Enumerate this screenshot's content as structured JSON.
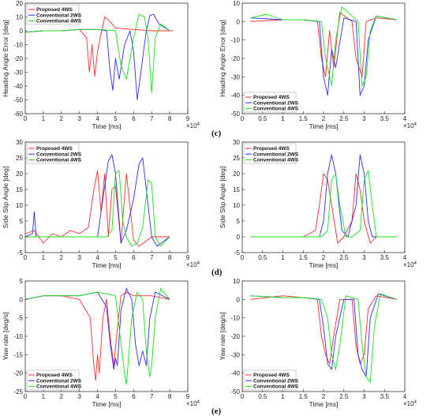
{
  "colors": {
    "proposed": "#ff2a2a",
    "conv2ws": "#2a2aff",
    "conv4ws": "#18e018"
  },
  "captions": {
    "c": "(c)",
    "d": "(d)",
    "e": "(e)"
  },
  "chart_data": [
    {
      "type": "line",
      "xlabel": "Time [ms]",
      "ylabel": "Heading Angle Error [deg]",
      "xlim": [
        0,
        9
      ],
      "ylim": [
        -60,
        20
      ],
      "xticks": [
        "0",
        "1",
        "2",
        "3",
        "4",
        "5",
        "6",
        "7",
        "8",
        "9"
      ],
      "yticks": [
        "-60",
        "-50",
        "-40",
        "-30",
        "-20",
        "-10",
        "0",
        "10",
        "20"
      ],
      "xexp": "×10",
      "xexp_power": "4",
      "grid": false,
      "legend": "top-left",
      "series": [
        {
          "name": "Proposed 4WS",
          "x": [
            0,
            1,
            2,
            3,
            3.4,
            3.55,
            3.7,
            3.85,
            4.0,
            4.2,
            4.4,
            4.6,
            5,
            6,
            7,
            8.2
          ],
          "y": [
            -1,
            0,
            0,
            1,
            -5,
            -30,
            -10,
            -33,
            -15,
            -2,
            10,
            8,
            2,
            1,
            0,
            0
          ]
        },
        {
          "name": "Conventional 2WS",
          "x": [
            0,
            1,
            2,
            3,
            4,
            4.5,
            4.7,
            4.85,
            5.0,
            5.2,
            5.5,
            5.8,
            6.0,
            6.2,
            6.5,
            6.7,
            6.9,
            7.1,
            7.4,
            8
          ],
          "y": [
            -1,
            0,
            0,
            1,
            1,
            0,
            -30,
            -43,
            -20,
            -35,
            -10,
            0,
            -15,
            -50,
            -20,
            0,
            11,
            12,
            5,
            0
          ]
        },
        {
          "name": "Conventional 4WS",
          "x": [
            0,
            1,
            2,
            3,
            4,
            5,
            5.3,
            5.6,
            5.8,
            6.0,
            6.3,
            6.6,
            6.8,
            7.0,
            7.2,
            7.5,
            8
          ],
          "y": [
            -1,
            0,
            0,
            1,
            1,
            0,
            -25,
            -35,
            -20,
            -5,
            12,
            10,
            -5,
            -45,
            -5,
            5,
            0
          ]
        }
      ]
    },
    {
      "type": "line",
      "xlabel": "Time [ms]",
      "ylabel": "Heading Angle Error [deg]",
      "xlim": [
        0,
        4
      ],
      "ylim": [
        -50,
        10
      ],
      "xticks": [
        "0",
        "0.5",
        "1",
        "1.5",
        "2",
        "2.5",
        "3",
        "3.5",
        "4"
      ],
      "yticks": [
        "-50",
        "-40",
        "-30",
        "-20",
        "-10",
        "0",
        "10"
      ],
      "xexp": "×10",
      "xexp_power": "4",
      "grid": false,
      "legend": "bottom-left",
      "series": [
        {
          "name": "Proposed 4WS",
          "x": [
            0.2,
            1,
            1.5,
            1.85,
            1.95,
            2.05,
            2.15,
            2.25,
            2.4,
            2.7,
            2.8,
            2.95,
            3.05,
            3.3,
            3.8
          ],
          "y": [
            0,
            1,
            1,
            0,
            -20,
            -30,
            -5,
            -25,
            5,
            0,
            -20,
            -30,
            0,
            2,
            1
          ]
        },
        {
          "name": "Conventional 2WS",
          "x": [
            0.2,
            1,
            1.5,
            1.9,
            2.0,
            2.1,
            2.2,
            2.3,
            2.5,
            2.8,
            2.9,
            3.0,
            3.1,
            3.3,
            3.8
          ],
          "y": [
            2,
            1,
            1,
            0,
            -30,
            -40,
            -15,
            -25,
            2,
            0,
            -40,
            -35,
            -10,
            3,
            1
          ]
        },
        {
          "name": "Conventional 4WS",
          "x": [
            0.2,
            0.6,
            1,
            1.5,
            1.95,
            2.05,
            2.2,
            2.3,
            2.45,
            2.85,
            2.95,
            3.05,
            3.15,
            3.3,
            3.8
          ],
          "y": [
            2,
            4,
            1,
            1,
            0,
            -20,
            -35,
            -10,
            8,
            0,
            -35,
            -30,
            -5,
            3,
            1
          ]
        }
      ]
    },
    {
      "type": "line",
      "xlabel": "Time [ms]",
      "ylabel": "Side Slip Angle [deg]",
      "xlim": [
        0,
        9
      ],
      "ylim": [
        -5,
        30
      ],
      "xticks": [
        "0",
        "1",
        "2",
        "3",
        "4",
        "5",
        "6",
        "7",
        "8",
        "9"
      ],
      "yticks": [
        "-5",
        "0",
        "5",
        "10",
        "15",
        "20",
        "25",
        "30"
      ],
      "xexp": "×10",
      "xexp_power": "4",
      "grid": false,
      "legend": "top-left",
      "series": [
        {
          "name": "Proposed 4WS",
          "x": [
            0,
            0.5,
            1,
            1.5,
            2,
            2.5,
            3,
            3.5,
            3.8,
            4.0,
            4.2,
            4.4,
            4.6,
            4.8,
            5.0,
            5.3,
            5.6,
            6.0,
            6.3,
            7,
            8
          ],
          "y": [
            1,
            2,
            -2,
            1,
            0,
            2,
            1,
            3,
            15,
            21,
            8,
            20,
            0,
            15,
            16,
            -2,
            20,
            -1,
            -3,
            0,
            0
          ]
        },
        {
          "name": "Conventional 2WS",
          "x": [
            0,
            0.4,
            0.5,
            0.6,
            1,
            2,
            3,
            4,
            4.3,
            4.6,
            4.8,
            5.0,
            5.3,
            5.6,
            6.0,
            6.3,
            6.5,
            6.7,
            7.0,
            7.3,
            8
          ],
          "y": [
            0,
            1,
            8,
            0,
            0,
            0,
            0,
            0,
            12,
            24,
            26,
            20,
            -2,
            2,
            12,
            23,
            25,
            15,
            0,
            -3,
            0
          ]
        },
        {
          "name": "Conventional 4WS",
          "x": [
            0,
            1,
            2,
            3,
            4,
            4.5,
            4.8,
            5.0,
            5.2,
            5.4,
            5.6,
            5.9,
            6.2,
            6.5,
            6.8,
            7.0,
            7.2,
            7.5,
            8
          ],
          "y": [
            0,
            0,
            0,
            0,
            0,
            0,
            2,
            20,
            21,
            5,
            0,
            -3,
            -2,
            3,
            18,
            17,
            0,
            -3,
            0
          ]
        }
      ]
    },
    {
      "type": "line",
      "xlabel": "Time [ms]",
      "ylabel": "Side Slip Angle [deg]",
      "xlim": [
        0,
        4
      ],
      "ylim": [
        -5,
        30
      ],
      "xticks": [
        "0",
        "0.5",
        "1",
        "1.5",
        "2",
        "2.5",
        "3",
        "3.5",
        "4"
      ],
      "yticks": [
        "-5",
        "0",
        "5",
        "10",
        "15",
        "20",
        "25",
        "30"
      ],
      "xexp": "×10",
      "xexp_power": "4",
      "grid": false,
      "legend": "top-left",
      "series": [
        {
          "name": "Proposed 4WS",
          "x": [
            0.2,
            1,
            1.5,
            1.8,
            1.9,
            2.0,
            2.1,
            2.2,
            2.35,
            2.5,
            2.7,
            2.8,
            2.9,
            3.0,
            3.15,
            3.3,
            3.8
          ],
          "y": [
            0,
            0,
            0,
            2,
            10,
            20,
            18,
            10,
            -2,
            0,
            5,
            20,
            15,
            5,
            -2,
            0,
            0
          ]
        },
        {
          "name": "Conventional 2WS",
          "x": [
            0.2,
            1,
            1.5,
            1.9,
            2.0,
            2.1,
            2.2,
            2.3,
            2.45,
            2.6,
            2.8,
            2.9,
            3.0,
            3.1,
            3.2,
            3.35,
            3.8
          ],
          "y": [
            0,
            0,
            0,
            0,
            5,
            20,
            26,
            20,
            2,
            0,
            10,
            26,
            20,
            5,
            0,
            0,
            0
          ]
        },
        {
          "name": "Conventional 4WS",
          "x": [
            0.2,
            1,
            1.5,
            1.95,
            2.1,
            2.2,
            2.3,
            2.4,
            2.55,
            2.7,
            2.9,
            3.0,
            3.1,
            3.2,
            3.3,
            3.45,
            3.8
          ],
          "y": [
            0,
            0,
            0,
            0,
            2,
            18,
            20,
            10,
            0,
            0,
            2,
            18,
            21,
            10,
            0,
            0,
            0
          ]
        }
      ]
    },
    {
      "type": "line",
      "xlabel": "Time [ms]",
      "ylabel": "Yaw rate [deg/s]",
      "xlim": [
        0,
        9
      ],
      "ylim": [
        -25,
        5
      ],
      "xticks": [
        "0",
        "1",
        "2",
        "3",
        "4",
        "5",
        "6",
        "7",
        "8",
        "9"
      ],
      "yticks": [
        "-25",
        "-20",
        "-15",
        "-10",
        "-5",
        "0",
        "5"
      ],
      "xexp": "×10",
      "xexp_power": "4",
      "grid": false,
      "legend": "bottom-left",
      "series": [
        {
          "name": "Proposed 4WS",
          "x": [
            0,
            1,
            2,
            3,
            3.6,
            3.8,
            3.9,
            4.0,
            4.1,
            4.3,
            4.5,
            4.7,
            4.9,
            5.1,
            5.3,
            5.6,
            6,
            7,
            8
          ],
          "y": [
            0,
            1,
            1,
            0,
            -5,
            -18,
            -22,
            -15,
            -20,
            -5,
            0,
            -10,
            -18,
            -8,
            1,
            2,
            1,
            1,
            0
          ]
        },
        {
          "name": "Conventional 2WS",
          "x": [
            0,
            1,
            2,
            3,
            4,
            4.5,
            4.7,
            4.9,
            5.0,
            5.1,
            5.3,
            5.6,
            5.9,
            6.1,
            6.3,
            6.5,
            6.7,
            6.9,
            7.2,
            8
          ],
          "y": [
            0,
            1,
            1,
            1,
            2,
            -2,
            -12,
            -19,
            -16,
            -18,
            -3,
            3,
            0,
            -12,
            -18,
            -14,
            -18,
            -5,
            2,
            0
          ]
        },
        {
          "name": "Conventional 4WS",
          "x": [
            0,
            1,
            2,
            3,
            4,
            5,
            5.3,
            5.5,
            5.6,
            5.7,
            5.9,
            6.2,
            6.5,
            6.7,
            6.9,
            7.0,
            7.2,
            7.5,
            8
          ],
          "y": [
            0,
            1,
            1,
            1,
            2,
            1,
            -12,
            -20,
            -23,
            -17,
            -5,
            2,
            0,
            -14,
            -21,
            -18,
            -5,
            3,
            0
          ]
        }
      ]
    },
    {
      "type": "line",
      "xlabel": "Time [ms]",
      "ylabel": "Yaw rate [deg/s]",
      "xlim": [
        0,
        4
      ],
      "ylim": [
        -50,
        10
      ],
      "xticks": [
        "0",
        "0.5",
        "1",
        "1.5",
        "2",
        "2.5",
        "3",
        "3.5",
        "4"
      ],
      "yticks": [
        "-50",
        "-40",
        "-30",
        "-20",
        "-10",
        "0",
        "10"
      ],
      "xexp": "×10",
      "xexp_power": "4",
      "grid": false,
      "legend": "bottom-left",
      "series": [
        {
          "name": "Proposed 4WS",
          "x": [
            0.2,
            1,
            1.5,
            1.85,
            1.95,
            2.05,
            2.15,
            2.25,
            2.4,
            2.7,
            2.8,
            2.9,
            3.0,
            3.1,
            3.3,
            3.8
          ],
          "y": [
            0,
            2,
            1,
            0,
            -20,
            -30,
            -35,
            -20,
            0,
            0,
            -25,
            -35,
            -30,
            -5,
            2,
            0
          ]
        },
        {
          "name": "Conventional 2WS",
          "x": [
            0.2,
            1,
            1.5,
            1.9,
            2.0,
            2.1,
            2.2,
            2.3,
            2.5,
            2.75,
            2.85,
            2.95,
            3.05,
            3.15,
            3.35,
            3.8
          ],
          "y": [
            2,
            1,
            1,
            0,
            -15,
            -35,
            -38,
            -20,
            0,
            0,
            -30,
            -38,
            -42,
            -10,
            3,
            0
          ]
        },
        {
          "name": "Conventional 4WS",
          "x": [
            0.2,
            1,
            1.5,
            1.95,
            2.1,
            2.2,
            2.3,
            2.4,
            2.55,
            2.85,
            2.95,
            3.05,
            3.15,
            3.25,
            3.4,
            3.8
          ],
          "y": [
            2,
            1,
            1,
            0,
            -10,
            -30,
            -38,
            -25,
            2,
            0,
            -25,
            -42,
            -45,
            -15,
            3,
            0
          ]
        }
      ]
    }
  ]
}
